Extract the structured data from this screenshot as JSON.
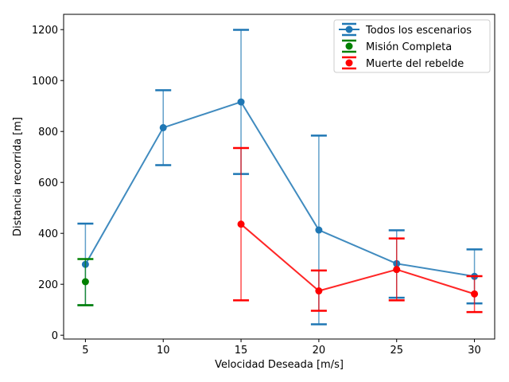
{
  "chart_data": {
    "type": "line",
    "title": "",
    "xlabel": "Velocidad Deseada [m/s]",
    "ylabel": "Distancia recorrida [m]",
    "xlim": [
      3.6,
      31.3
    ],
    "ylim": [
      -15,
      1260
    ],
    "xticks": [
      5,
      10,
      15,
      20,
      25,
      30
    ],
    "yticks": [
      0,
      200,
      400,
      600,
      800,
      1000,
      1200
    ],
    "grid": false,
    "legend_position": "top-right",
    "series": [
      {
        "name": "Todos los escenarios",
        "color": "#1f77b4",
        "points": [
          {
            "x": 5,
            "y": 278,
            "ylow": 118,
            "yhigh": 438
          },
          {
            "x": 10,
            "y": 815,
            "ylow": 668,
            "yhigh": 962
          },
          {
            "x": 15,
            "y": 916,
            "ylow": 633,
            "yhigh": 1199
          },
          {
            "x": 20,
            "y": 413,
            "ylow": 43,
            "yhigh": 784
          },
          {
            "x": 25,
            "y": 281,
            "ylow": 147,
            "yhigh": 412
          },
          {
            "x": 30,
            "y": 231,
            "ylow": 125,
            "yhigh": 337
          }
        ]
      },
      {
        "name": "Misión Completa",
        "color": "#008000",
        "points": [
          {
            "x": 5,
            "y": 210,
            "ylow": 118,
            "yhigh": 299
          }
        ]
      },
      {
        "name": "Muerte del rebelde",
        "color": "#ff0000",
        "points": [
          {
            "x": 15,
            "y": 436,
            "ylow": 137,
            "yhigh": 735
          },
          {
            "x": 20,
            "y": 174,
            "ylow": 96,
            "yhigh": 254
          },
          {
            "x": 25,
            "y": 258,
            "ylow": 137,
            "yhigh": 380
          },
          {
            "x": 30,
            "y": 162,
            "ylow": 91,
            "yhigh": 232
          }
        ]
      }
    ]
  }
}
